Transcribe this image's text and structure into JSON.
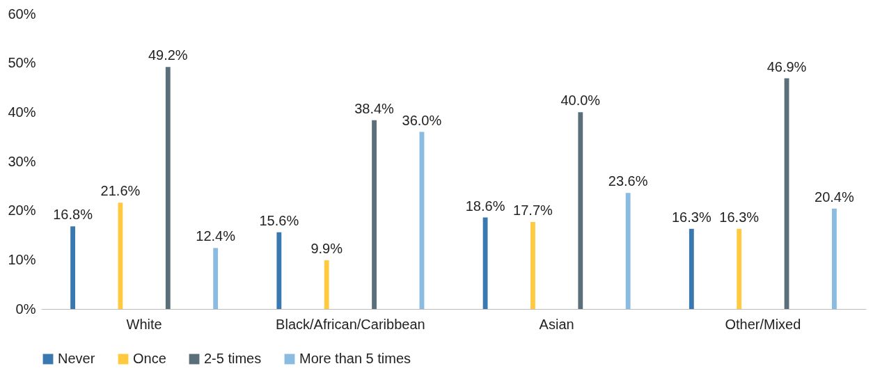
{
  "chart_data": {
    "type": "bar",
    "categories": [
      "White",
      "Black/African/Caribbean",
      "Asian",
      "Other/Mixed"
    ],
    "series": [
      {
        "name": "Never",
        "color": "#3a78b0",
        "values": [
          16.8,
          15.6,
          18.6,
          16.3
        ],
        "value_labels": [
          "16.8%",
          "15.6%",
          "18.6%",
          "16.3%"
        ]
      },
      {
        "name": "Once",
        "color": "#ffc940",
        "values": [
          21.6,
          9.9,
          17.7,
          16.3
        ],
        "value_labels": [
          "21.6%",
          "9.9%",
          "17.7%",
          "16.3%"
        ]
      },
      {
        "name": "2-5 times",
        "color": "#5b6f7b",
        "values": [
          49.2,
          38.4,
          40.0,
          46.9
        ],
        "value_labels": [
          "49.2%",
          "38.4%",
          "40.0%",
          "46.9%"
        ]
      },
      {
        "name": "More than 5 times",
        "color": "#8abbe0",
        "values": [
          12.4,
          36.0,
          23.6,
          20.4
        ],
        "value_labels": [
          "12.4%",
          "36.0%",
          "23.6%",
          "20.4%"
        ]
      }
    ],
    "ylim": [
      0,
      60
    ],
    "yticks": [
      {
        "value": 0,
        "label": "0%"
      },
      {
        "value": 10,
        "label": "10%"
      },
      {
        "value": 20,
        "label": "20%"
      },
      {
        "value": 30,
        "label": "30%"
      },
      {
        "value": 40,
        "label": "40%"
      },
      {
        "value": 50,
        "label": "50%"
      },
      {
        "value": 60,
        "label": "60%"
      }
    ],
    "grid": false,
    "legend": "bottom"
  }
}
